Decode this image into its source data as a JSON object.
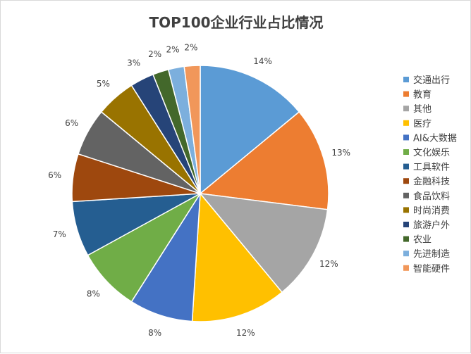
{
  "chart_data": {
    "type": "pie",
    "title": "TOP100企业行业占比情况",
    "legend_position": "right",
    "slices": [
      {
        "label": "交通出行",
        "value": 14,
        "display": "14%",
        "color": "#5b9bd5"
      },
      {
        "label": "教育",
        "value": 13,
        "display": "13%",
        "color": "#ed7d31"
      },
      {
        "label": "其他",
        "value": 12,
        "display": "12%",
        "color": "#a5a5a5"
      },
      {
        "label": "医疗",
        "value": 12,
        "display": "12%",
        "color": "#ffc000"
      },
      {
        "label": "AI&大数据",
        "value": 8,
        "display": "8%",
        "color": "#4472c4"
      },
      {
        "label": "文化娱乐",
        "value": 8,
        "display": "8%",
        "color": "#70ad47"
      },
      {
        "label": "工具软件",
        "value": 7,
        "display": "7%",
        "color": "#255e91"
      },
      {
        "label": "金融科技",
        "value": 6,
        "display": "6%",
        "color": "#9e480e"
      },
      {
        "label": "食品饮料",
        "value": 6,
        "display": "6%",
        "color": "#636363"
      },
      {
        "label": "时尚消费",
        "value": 5,
        "display": "5%",
        "color": "#997300"
      },
      {
        "label": "旅游户外",
        "value": 3,
        "display": "3%",
        "color": "#264478"
      },
      {
        "label": "农业",
        "value": 2,
        "display": "2%",
        "color": "#43682b"
      },
      {
        "label": "先进制造",
        "value": 2,
        "display": "2%",
        "color": "#7cafdd"
      },
      {
        "label": "智能硬件",
        "value": 2,
        "display": "2%",
        "color": "#f1975a"
      }
    ]
  }
}
